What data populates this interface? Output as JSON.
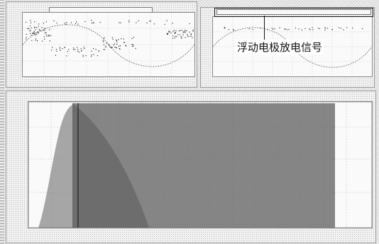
{
  "top_left": {
    "title": "",
    "header_bar": "",
    "footer": ""
  },
  "top_right": {
    "header_bar": "",
    "footer": ""
  },
  "annotation": "浮动电极放电信号",
  "main": {
    "title": "",
    "y_label": "",
    "x_label": ""
  },
  "colors": {
    "plot_bg": "#fafafa",
    "signal": "#555555",
    "grid": "#bbbbbb",
    "annotation_box": "#111111"
  }
}
